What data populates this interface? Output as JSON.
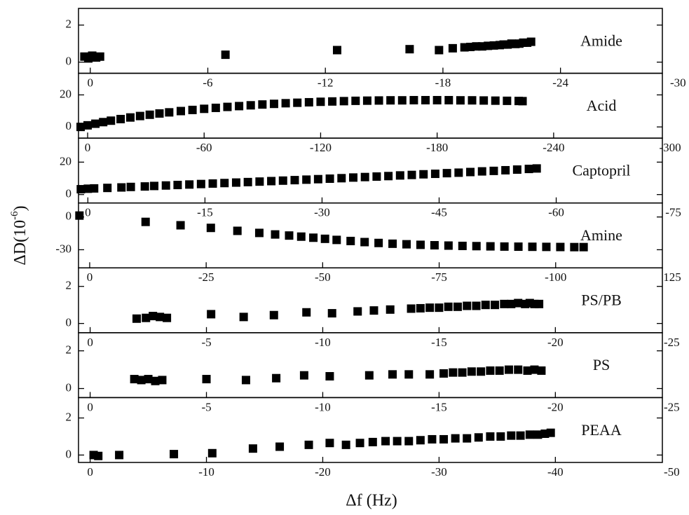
{
  "chart_data": [
    {
      "type": "scatter",
      "title": "Amide",
      "color": "#000000",
      "x": [
        0.3,
        0.1,
        -0.1,
        -0.3,
        -0.5,
        -6.9,
        -12.6,
        -16.3,
        -17.8,
        -18.5,
        -19.1,
        -19.4,
        -19.7,
        -20.0,
        -20.3,
        -20.6,
        -20.9,
        -21.1,
        -21.3,
        -21.5,
        -21.7,
        -21.9,
        -22.1,
        -22.3,
        -22.5
      ],
      "values": [
        0.3,
        0.2,
        0.35,
        0.25,
        0.3,
        0.4,
        0.65,
        0.7,
        0.65,
        0.75,
        0.8,
        0.82,
        0.85,
        0.85,
        0.88,
        0.9,
        0.92,
        0.95,
        0.95,
        1.0,
        0.98,
        1.0,
        1.05,
        1.05,
        1.1
      ],
      "xlim": [
        0.6,
        -29.2
      ],
      "ylim": [
        -0.6,
        2.9
      ],
      "xticks": [
        0,
        -6,
        -12,
        -18,
        -24,
        -30
      ],
      "yticks": [
        0,
        2
      ]
    },
    {
      "type": "scatter",
      "title": "Acid",
      "color": "#000000",
      "x": [
        3.6,
        0,
        -4,
        -8,
        -12,
        -17,
        -22,
        -27,
        -32,
        -37,
        -42,
        -48,
        -54,
        -60,
        -66,
        -72,
        -78,
        -84,
        -90,
        -96,
        -102,
        -108,
        -114,
        -120,
        -126,
        -132,
        -138,
        -144,
        -150,
        -156,
        -162,
        -168,
        -174,
        -180,
        -186,
        -192,
        -198,
        -204,
        -210,
        -216,
        -222,
        -224
      ],
      "values": [
        0,
        1,
        2,
        3,
        3.9,
        4.9,
        5.9,
        6.8,
        7.6,
        8.4,
        9.1,
        9.9,
        10.6,
        11.3,
        11.9,
        12.5,
        13.0,
        13.5,
        14.0,
        14.4,
        14.8,
        15.1,
        15.4,
        15.7,
        15.9,
        16.1,
        16.3,
        16.4,
        16.5,
        16.6,
        16.6,
        16.7,
        16.7,
        16.7,
        16.7,
        16.6,
        16.6,
        16.5,
        16.4,
        16.3,
        16.2,
        16.1
      ],
      "xlim": [
        4.7,
        -296
      ],
      "ylim": [
        -7,
        33.5
      ],
      "xticks": [
        0,
        -60,
        -120,
        -180,
        -240,
        -300
      ],
      "yticks": [
        0,
        20
      ]
    },
    {
      "type": "scatter",
      "title": "Captopril",
      "color": "#000000",
      "x": [
        0.9,
        0,
        -0.8,
        -2.5,
        -4.3,
        -5.5,
        -7.3,
        -8.5,
        -10,
        -11.5,
        -13,
        -14.5,
        -16,
        -17.5,
        -19,
        -20.5,
        -22,
        -23.5,
        -25,
        -26.5,
        -28,
        -29.5,
        -31,
        -32.5,
        -34,
        -35.5,
        -37,
        -38.5,
        -40,
        -41.5,
        -43,
        -44.5,
        -46,
        -47.5,
        -49,
        -50.5,
        -52,
        -53.5,
        -55,
        -56.5,
        -57.5
      ],
      "values": [
        3.3,
        3.6,
        3.8,
        4.1,
        4.4,
        4.7,
        5.0,
        5.3,
        5.6,
        5.9,
        6.2,
        6.5,
        6.8,
        7.1,
        7.4,
        7.7,
        8.0,
        8.3,
        8.6,
        8.9,
        9.2,
        9.5,
        9.8,
        10.1,
        10.5,
        10.8,
        11.1,
        11.4,
        11.8,
        12.1,
        12.5,
        12.8,
        13.2,
        13.5,
        13.9,
        14.3,
        14.6,
        15.0,
        15.4,
        15.8,
        16.1
      ],
      "xlim": [
        1.2,
        -73.6
      ],
      "ylim": [
        -5.2,
        34.8
      ],
      "xticks": [
        0,
        -15,
        -30,
        -45,
        -60,
        -75
      ],
      "yticks": [
        0,
        20
      ]
    },
    {
      "type": "scatter",
      "title": "Amine",
      "color": "#000000",
      "ylabel": {
        "base": "ΔD(10",
        "sup": "-6",
        "end": ")"
      },
      "x": [
        2.2,
        -12,
        -19.5,
        -26,
        -31.7,
        -36.4,
        -39.8,
        -42.8,
        -45.4,
        -48,
        -50.5,
        -53,
        -56,
        -59,
        -62,
        -65,
        -68,
        -71,
        -74,
        -77,
        -80,
        -83,
        -86,
        -89,
        -92,
        -95,
        -98,
        -101,
        -104,
        -106
      ],
      "values": [
        1.3,
        -4.5,
        -7.6,
        -10,
        -12.7,
        -14.6,
        -16,
        -17,
        -18,
        -19,
        -20,
        -21,
        -22,
        -23,
        -23.8,
        -24.5,
        -25,
        -25.5,
        -25.9,
        -26.2,
        -26.5,
        -26.7,
        -26.9,
        -27.1,
        -27.2,
        -27.3,
        -27.4,
        -27.5,
        -27.6,
        -27.6
      ],
      "xlim": [
        2.4,
        -122.9
      ],
      "ylim": [
        -46.6,
        12.8
      ],
      "xticks": [
        0,
        -25,
        -50,
        -75,
        -100,
        {
          "value": -125,
          "label": "125"
        }
      ],
      "yticks": [
        0,
        -30
      ]
    },
    {
      "type": "scatter",
      "title": "PS/PB",
      "color": "#000000",
      "x": [
        -2,
        -2.4,
        -2.7,
        -3,
        -3.3,
        -5.2,
        -6.6,
        -7.9,
        -9.3,
        -10.4,
        -11.5,
        -12.2,
        -12.9,
        -13.8,
        -14.2,
        -14.6,
        -15,
        -15.4,
        -15.8,
        -16.2,
        -16.6,
        -17,
        -17.4,
        -17.8,
        -18.1,
        -18.4,
        -18.7,
        -18.9,
        -19.1,
        -19.3
      ],
      "values": [
        0.26,
        0.3,
        0.4,
        0.35,
        0.3,
        0.5,
        0.35,
        0.45,
        0.6,
        0.55,
        0.65,
        0.7,
        0.75,
        0.8,
        0.82,
        0.85,
        0.85,
        0.9,
        0.9,
        0.95,
        0.95,
        1.0,
        1.0,
        1.05,
        1.05,
        1.1,
        1.05,
        1.1,
        1.05,
        1.05
      ],
      "xlim": [
        0.5,
        -24.6
      ],
      "ylim": [
        -0.5,
        3.0
      ],
      "xticks": [
        0,
        -5,
        -10,
        -15,
        -20,
        -25
      ],
      "yticks": [
        0,
        2
      ]
    },
    {
      "type": "scatter",
      "title": "PS",
      "color": "#000000",
      "x": [
        -1.9,
        -2.2,
        -2.5,
        -2.8,
        -3.1,
        -5,
        -6.7,
        -8,
        -9.2,
        -10.3,
        -12,
        -13,
        -13.7,
        -14.6,
        -15.2,
        -15.6,
        -16,
        -16.4,
        -16.8,
        -17.2,
        -17.6,
        -18,
        -18.4,
        -18.8,
        -19.1,
        -19.4
      ],
      "values": [
        0.5,
        0.45,
        0.5,
        0.4,
        0.45,
        0.5,
        0.45,
        0.55,
        0.7,
        0.65,
        0.7,
        0.75,
        0.75,
        0.75,
        0.8,
        0.85,
        0.85,
        0.9,
        0.9,
        0.95,
        0.95,
        1.0,
        1.0,
        0.95,
        1.0,
        0.95
      ],
      "xlim": [
        0.5,
        -24.6
      ],
      "ylim": [
        -0.48,
        2.96
      ],
      "xticks": [
        0,
        -5,
        -10,
        -15,
        -20,
        -25
      ],
      "yticks": [
        0,
        2
      ]
    },
    {
      "type": "scatter",
      "title": "PEAA",
      "color": "#000000",
      "xlabel": "Δf (Hz)",
      "x": [
        -0.3,
        -0.7,
        -2.5,
        -7.2,
        -10.5,
        -14,
        -16.3,
        -18.8,
        -20.6,
        -22,
        -23.2,
        -24.3,
        -25.4,
        -26.4,
        -27.4,
        -28.4,
        -29.4,
        -30.4,
        -31.4,
        -32.4,
        -33.4,
        -34.4,
        -35.3,
        -36.2,
        -37,
        -37.8,
        -38.5,
        -39.1,
        -39.6
      ],
      "values": [
        0,
        -0.05,
        0,
        0.05,
        0.1,
        0.35,
        0.45,
        0.55,
        0.65,
        0.55,
        0.65,
        0.7,
        0.75,
        0.75,
        0.75,
        0.8,
        0.85,
        0.85,
        0.9,
        0.9,
        0.95,
        1.0,
        1.0,
        1.05,
        1.05,
        1.1,
        1.1,
        1.15,
        1.2
      ],
      "xlim": [
        1,
        -49.2
      ],
      "ylim": [
        -0.4,
        3.1
      ],
      "xticks": [
        0,
        -10,
        -20,
        -30,
        -40,
        -50
      ],
      "yticks": [
        0,
        2
      ]
    }
  ]
}
